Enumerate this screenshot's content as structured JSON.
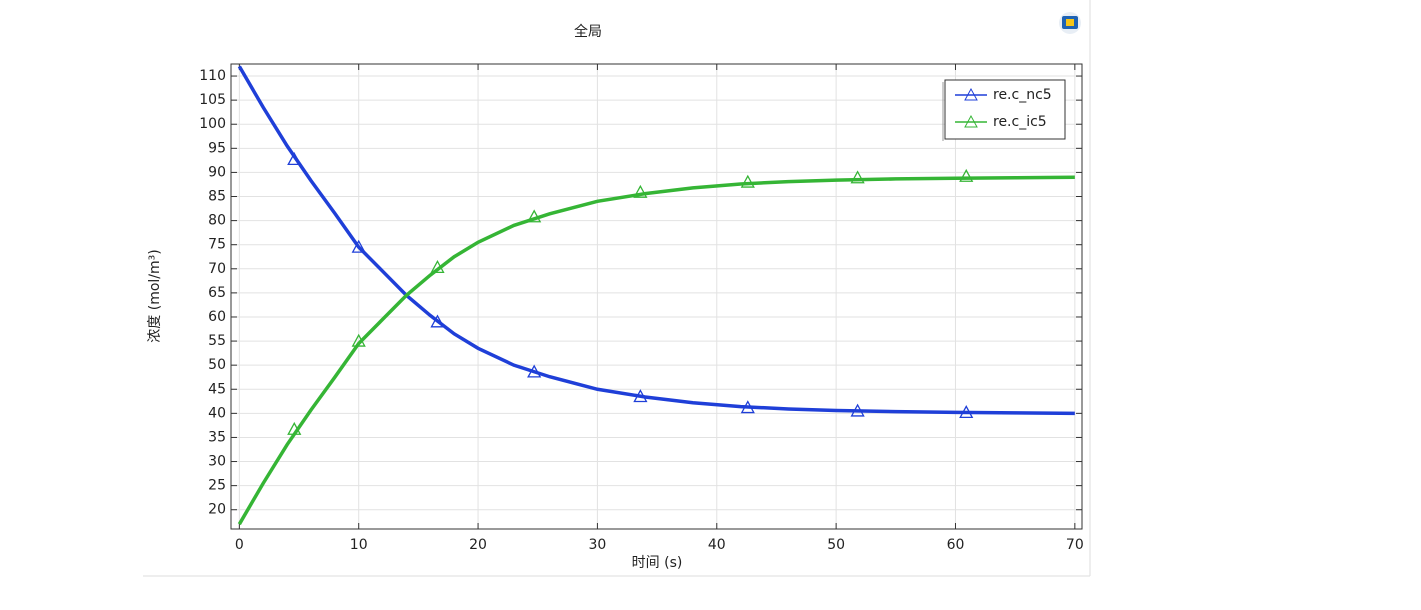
{
  "chart_data": {
    "type": "line",
    "title": "全局",
    "xlabel": "时间 (s)",
    "ylabel": "浓度 (mol/m³)",
    "x": [
      0,
      2,
      4,
      6,
      8,
      10,
      12,
      14,
      16,
      18,
      20,
      23,
      26,
      30,
      34,
      38,
      42,
      46,
      50,
      55,
      60,
      65,
      70
    ],
    "marker_x": [
      4.6,
      10,
      16.6,
      24.7,
      33.6,
      42.6,
      51.8,
      60.9
    ],
    "series": [
      {
        "name": "re.c_nc5",
        "color": "#1f3fd8",
        "values": [
          112,
          103.5,
          95.5,
          88.3,
          81.5,
          74.5,
          69.5,
          64.5,
          60.3,
          56.5,
          53.5,
          50,
          47.6,
          45,
          43.4,
          42.2,
          41.4,
          40.9,
          40.6,
          40.35,
          40.2,
          40.1,
          40
        ],
        "marker_values": [
          92.7,
          74.5,
          59,
          48.6,
          43.5,
          41.2,
          40.5,
          40.2
        ]
      },
      {
        "name": "re.c_ic5",
        "color": "#35b535",
        "values": [
          17,
          25.5,
          33.5,
          40.7,
          47.5,
          54.5,
          59.5,
          64.5,
          68.7,
          72.5,
          75.5,
          79,
          81.4,
          84,
          85.6,
          86.8,
          87.6,
          88.1,
          88.4,
          88.65,
          88.8,
          88.9,
          89
        ],
        "marker_values": [
          36.7,
          55,
          70.3,
          80.8,
          85.9,
          88,
          88.9,
          89.2
        ]
      }
    ],
    "xlim": [
      -0.7,
      70.6
    ],
    "ylim": [
      16,
      112.5
    ],
    "xticks": [
      0,
      10,
      20,
      30,
      40,
      50,
      60,
      70
    ],
    "yticks": [
      20,
      25,
      30,
      35,
      40,
      45,
      50,
      55,
      60,
      65,
      70,
      75,
      80,
      85,
      90,
      95,
      100,
      105,
      110
    ],
    "grid": true,
    "legend": "top-right"
  }
}
